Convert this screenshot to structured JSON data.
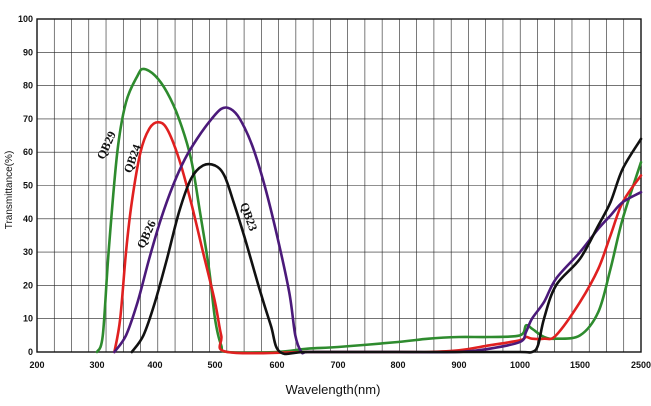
{
  "chart_data": {
    "type": "line",
    "title": "",
    "xlabel": "Wavelength(nm)",
    "ylabel": "Transmittance(%)",
    "x_ticks": [
      "200",
      "300",
      "400",
      "500",
      "600",
      "700",
      "800",
      "900",
      "1000",
      "1500",
      "2500"
    ],
    "y_ticks": [
      "0",
      "10",
      "20",
      "30",
      "40",
      "50",
      "60",
      "70",
      "80",
      "90",
      "100"
    ],
    "ylim": [
      0,
      100
    ],
    "grid": true,
    "series": [
      {
        "name": "QB29",
        "color": "#2e8b2e",
        "points": [
          [
            300,
            0
          ],
          [
            310,
            5
          ],
          [
            320,
            30
          ],
          [
            335,
            60
          ],
          [
            350,
            75
          ],
          [
            370,
            83
          ],
          [
            380,
            85
          ],
          [
            400,
            83
          ],
          [
            420,
            78
          ],
          [
            440,
            70
          ],
          [
            460,
            58
          ],
          [
            475,
            42
          ],
          [
            490,
            25
          ],
          [
            500,
            10
          ],
          [
            510,
            2
          ],
          [
            520,
            0
          ],
          [
            600,
            0
          ],
          [
            650,
            1
          ],
          [
            700,
            1.5
          ],
          [
            800,
            3
          ],
          [
            850,
            4
          ],
          [
            900,
            4.5
          ],
          [
            950,
            4.5
          ],
          [
            1000,
            5
          ],
          [
            1050,
            8
          ],
          [
            1100,
            7
          ],
          [
            1200,
            4.5
          ],
          [
            1300,
            4
          ],
          [
            1500,
            5
          ],
          [
            1800,
            12
          ],
          [
            2000,
            25
          ],
          [
            2200,
            40
          ],
          [
            2500,
            57
          ]
        ]
      },
      {
        "name": "QB24",
        "color": "#e02020",
        "points": [
          [
            330,
            0
          ],
          [
            340,
            10
          ],
          [
            350,
            30
          ],
          [
            360,
            45
          ],
          [
            375,
            60
          ],
          [
            390,
            67
          ],
          [
            405,
            69
          ],
          [
            420,
            67
          ],
          [
            440,
            58
          ],
          [
            460,
            45
          ],
          [
            480,
            30
          ],
          [
            500,
            15
          ],
          [
            510,
            5
          ],
          [
            520,
            0
          ],
          [
            650,
            0
          ],
          [
            700,
            0
          ],
          [
            800,
            0
          ],
          [
            850,
            0
          ],
          [
            900,
            0.5
          ],
          [
            950,
            2
          ],
          [
            1000,
            3.5
          ],
          [
            1050,
            4.5
          ],
          [
            1100,
            4
          ],
          [
            1200,
            4
          ],
          [
            1300,
            5
          ],
          [
            1500,
            15
          ],
          [
            1800,
            25
          ],
          [
            2000,
            35
          ],
          [
            2200,
            45
          ],
          [
            2500,
            53
          ]
        ]
      },
      {
        "name": "QB26",
        "color": "#4b1a7a",
        "points": [
          [
            330,
            0
          ],
          [
            350,
            5
          ],
          [
            370,
            15
          ],
          [
            390,
            28
          ],
          [
            410,
            40
          ],
          [
            430,
            50
          ],
          [
            450,
            58
          ],
          [
            470,
            64
          ],
          [
            490,
            69
          ],
          [
            510,
            73
          ],
          [
            525,
            73
          ],
          [
            540,
            70
          ],
          [
            560,
            62
          ],
          [
            580,
            50
          ],
          [
            600,
            35
          ],
          [
            620,
            18
          ],
          [
            630,
            5
          ],
          [
            640,
            0
          ],
          [
            650,
            0
          ],
          [
            700,
            0
          ],
          [
            800,
            0
          ],
          [
            900,
            0
          ],
          [
            950,
            1
          ],
          [
            1000,
            3
          ],
          [
            1050,
            6
          ],
          [
            1100,
            10
          ],
          [
            1200,
            15
          ],
          [
            1300,
            22
          ],
          [
            1500,
            30
          ],
          [
            1800,
            37
          ],
          [
            2000,
            41
          ],
          [
            2200,
            45
          ],
          [
            2500,
            48
          ]
        ]
      },
      {
        "name": "QB23",
        "color": "#111111",
        "points": [
          [
            360,
            0
          ],
          [
            380,
            5
          ],
          [
            400,
            15
          ],
          [
            420,
            28
          ],
          [
            440,
            42
          ],
          [
            460,
            52
          ],
          [
            480,
            56
          ],
          [
            500,
            56
          ],
          [
            515,
            53
          ],
          [
            530,
            45
          ],
          [
            550,
            33
          ],
          [
            570,
            20
          ],
          [
            590,
            8
          ],
          [
            605,
            0
          ],
          [
            650,
            0
          ],
          [
            800,
            0
          ],
          [
            900,
            0
          ],
          [
            1000,
            0
          ],
          [
            1100,
            0
          ],
          [
            1150,
            2
          ],
          [
            1200,
            10
          ],
          [
            1300,
            20
          ],
          [
            1500,
            28
          ],
          [
            1800,
            38
          ],
          [
            2000,
            45
          ],
          [
            2200,
            55
          ],
          [
            2500,
            64
          ]
        ]
      }
    ]
  }
}
